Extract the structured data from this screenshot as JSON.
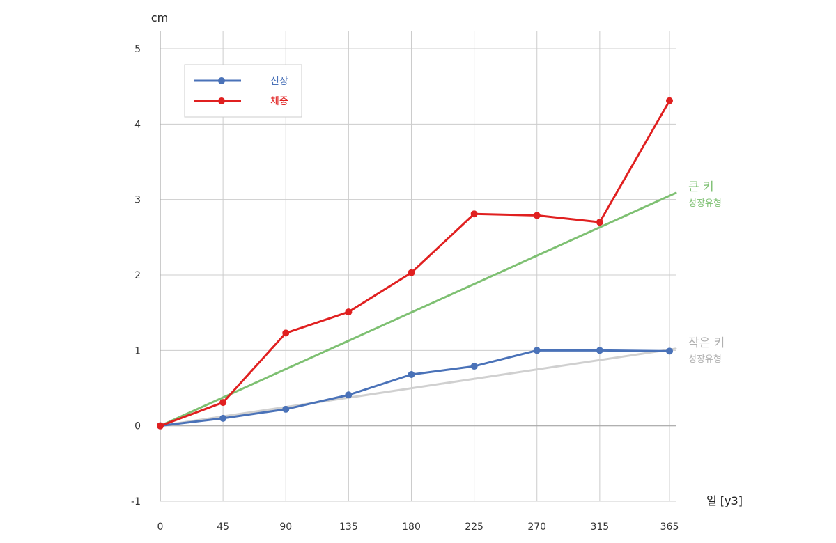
{
  "chart_data": {
    "type": "line",
    "ylabel": "cm",
    "xlabel": "일 [y3]",
    "x": [
      0,
      45,
      90,
      135,
      180,
      225,
      270,
      315,
      365
    ],
    "xlim": [
      0,
      365
    ],
    "ylim": [
      -1,
      5
    ],
    "x_ticks": [
      "0",
      "45",
      "90",
      "135",
      "180",
      "225",
      "270",
      "315",
      "365"
    ],
    "y_ticks": [
      "-1",
      "0",
      "1",
      "2",
      "3",
      "4",
      "5"
    ],
    "grid": true,
    "legend_position": "top-left",
    "series": [
      {
        "name": "신장",
        "color": "#4a72b8",
        "values": [
          0,
          0.1,
          0.22,
          0.41,
          0.68,
          0.79,
          1.0,
          1.0,
          0.99
        ]
      },
      {
        "name": "체중",
        "color": "#e02020",
        "values": [
          0,
          0.31,
          1.23,
          1.51,
          2.03,
          2.81,
          2.79,
          2.7,
          4.31
        ]
      }
    ],
    "reference_lines": [
      {
        "title": "큰 키",
        "subtitle": "성장유형",
        "color": "#7ec072",
        "x": [
          0,
          365
        ],
        "y": [
          0,
          3.05
        ]
      },
      {
        "title": "작은 키",
        "subtitle": "성장유형",
        "color": "#d0d0d0",
        "label_color": "#b0b0b0",
        "x": [
          0,
          365
        ],
        "y": [
          0,
          1.01
        ]
      }
    ]
  }
}
